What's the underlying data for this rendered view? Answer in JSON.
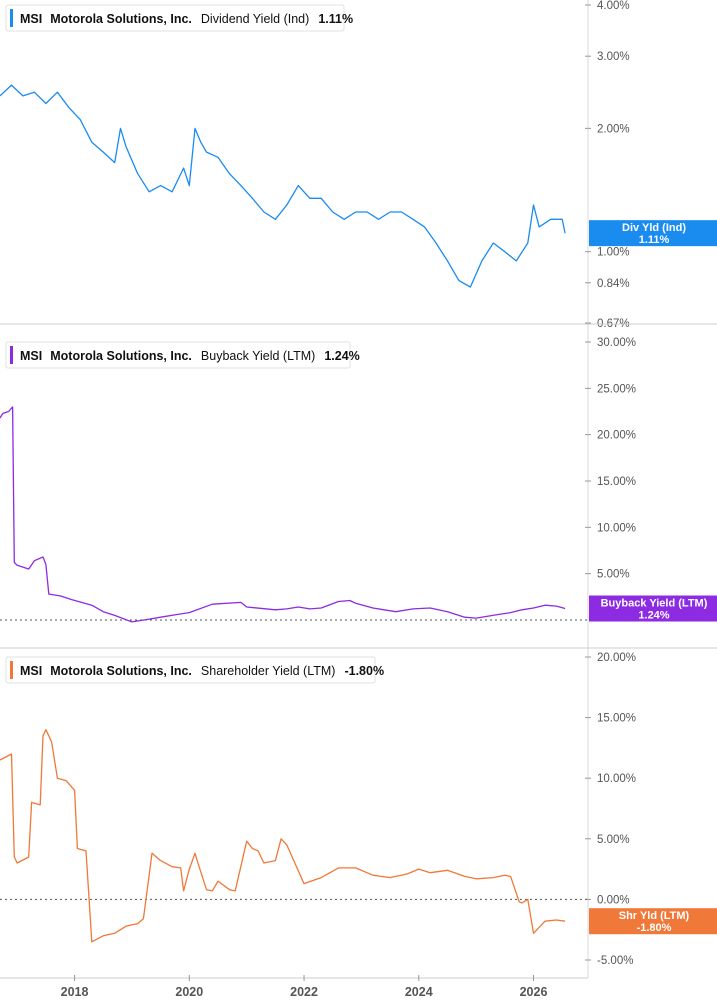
{
  "chart_data": [
    {
      "type": "line",
      "panel": "dividend",
      "ticker": "MSI",
      "company": "Motorola Solutions, Inc.",
      "metric": "Dividend Yield (Ind)",
      "current": "1.11%",
      "flag_label": "Div Yld (Ind)",
      "flag_value": "1.11%",
      "color": "#1a8cf0",
      "yscale": "log",
      "ylim": [
        0.67,
        4.0
      ],
      "yticks": [
        4.0,
        3.0,
        2.0,
        1.0,
        0.84,
        0.67
      ],
      "ytick_labels": [
        "4.00%",
        "3.00%",
        "2.00%",
        "1.00%",
        "0.84%",
        "0.67%"
      ],
      "zero_line": false,
      "x": [
        2016.7,
        2016.9,
        2017.1,
        2017.3,
        2017.5,
        2017.7,
        2017.9,
        2018.1,
        2018.3,
        2018.5,
        2018.7,
        2018.8,
        2018.9,
        2019.1,
        2019.3,
        2019.5,
        2019.7,
        2019.9,
        2020.0,
        2020.1,
        2020.2,
        2020.3,
        2020.5,
        2020.7,
        2020.9,
        2021.1,
        2021.3,
        2021.5,
        2021.7,
        2021.9,
        2022.1,
        2022.3,
        2022.5,
        2022.7,
        2022.9,
        2023.1,
        2023.3,
        2023.5,
        2023.7,
        2023.9,
        2024.1,
        2024.3,
        2024.5,
        2024.7,
        2024.9,
        2025.1,
        2025.3,
        2025.5,
        2025.7,
        2025.9,
        2026.0,
        2026.1,
        2026.3,
        2026.5,
        2026.55
      ],
      "y": [
        2.4,
        2.55,
        2.4,
        2.45,
        2.3,
        2.45,
        2.25,
        2.1,
        1.85,
        1.75,
        1.65,
        2.0,
        1.8,
        1.55,
        1.4,
        1.45,
        1.4,
        1.6,
        1.45,
        2.0,
        1.85,
        1.75,
        1.7,
        1.55,
        1.45,
        1.35,
        1.25,
        1.2,
        1.3,
        1.45,
        1.35,
        1.35,
        1.25,
        1.2,
        1.25,
        1.25,
        1.2,
        1.25,
        1.25,
        1.2,
        1.15,
        1.05,
        0.95,
        0.85,
        0.82,
        0.95,
        1.05,
        1.0,
        0.95,
        1.05,
        1.3,
        1.15,
        1.2,
        1.2,
        1.11
      ]
    },
    {
      "type": "line",
      "panel": "buyback",
      "ticker": "MSI",
      "company": "Motorola Solutions, Inc.",
      "metric": "Buyback Yield (LTM)",
      "current": "1.24%",
      "flag_label": "Buyback Yield (LTM)",
      "flag_value": "1.24%",
      "color": "#8c2be2",
      "yscale": "linear",
      "ylim": [
        0,
        30
      ],
      "yticks": [
        30,
        25,
        20,
        15,
        10,
        5
      ],
      "ytick_labels": [
        "30.00%",
        "25.00%",
        "20.00%",
        "15.00%",
        "10.00%",
        "5.00%"
      ],
      "zero_line": true,
      "x": [
        2016.7,
        2016.75,
        2016.85,
        2016.92,
        2016.95,
        2017.0,
        2017.2,
        2017.3,
        2017.45,
        2017.5,
        2017.55,
        2017.75,
        2017.95,
        2018.3,
        2018.5,
        2018.7,
        2019.0,
        2019.3,
        2019.5,
        2019.8,
        2020.0,
        2020.4,
        2020.9,
        2021.0,
        2021.5,
        2021.7,
        2021.9,
        2022.1,
        2022.3,
        2022.6,
        2022.8,
        2022.9,
        2023.2,
        2023.6,
        2023.9,
        2024.2,
        2024.5,
        2024.8,
        2025.0,
        2025.4,
        2025.6,
        2025.8,
        2026.0,
        2026.2,
        2026.4,
        2026.55
      ],
      "y": [
        21.8,
        22.3,
        22.5,
        23.0,
        6.2,
        5.9,
        5.5,
        6.4,
        6.8,
        6.0,
        2.8,
        2.6,
        2.2,
        1.6,
        0.9,
        0.5,
        -0.2,
        0.1,
        0.3,
        0.6,
        0.8,
        1.7,
        1.9,
        1.4,
        1.1,
        1.2,
        1.4,
        1.2,
        1.3,
        2.0,
        2.1,
        1.8,
        1.3,
        0.9,
        1.2,
        1.3,
        0.9,
        0.3,
        0.2,
        0.6,
        0.8,
        1.1,
        1.3,
        1.6,
        1.5,
        1.24
      ]
    },
    {
      "type": "line",
      "panel": "shareholder",
      "ticker": "MSI",
      "company": "Motorola Solutions, Inc.",
      "metric": "Shareholder Yield (LTM)",
      "current": "-1.80%",
      "flag_label": "Shr Yld (LTM)",
      "flag_value": "-1.80%",
      "color": "#f07838",
      "yscale": "linear",
      "ylim": [
        -5,
        20
      ],
      "yticks": [
        20,
        15,
        10,
        5,
        0,
        -5
      ],
      "ytick_labels": [
        "20.00%",
        "15.00%",
        "10.00%",
        "5.00%",
        "0.00%",
        "-5.00%"
      ],
      "zero_line": true,
      "x": [
        2016.7,
        2016.9,
        2016.95,
        2017.0,
        2017.2,
        2017.25,
        2017.4,
        2017.45,
        2017.5,
        2017.6,
        2017.7,
        2017.85,
        2018.0,
        2018.05,
        2018.2,
        2018.3,
        2018.5,
        2018.7,
        2018.9,
        2019.1,
        2019.2,
        2019.35,
        2019.5,
        2019.7,
        2019.85,
        2019.9,
        2020.0,
        2020.1,
        2020.15,
        2020.3,
        2020.4,
        2020.5,
        2020.7,
        2020.8,
        2021.0,
        2021.1,
        2021.2,
        2021.3,
        2021.5,
        2021.6,
        2021.7,
        2022.0,
        2022.3,
        2022.6,
        2022.9,
        2023.2,
        2023.5,
        2023.8,
        2024.0,
        2024.2,
        2024.5,
        2024.8,
        2025.0,
        2025.3,
        2025.5,
        2025.6,
        2025.75,
        2025.8,
        2025.9,
        2026.0,
        2026.2,
        2026.4,
        2026.55
      ],
      "y": [
        11.5,
        12.0,
        3.5,
        3.0,
        3.5,
        8.0,
        7.8,
        13.5,
        14.0,
        13.0,
        10.0,
        9.8,
        9.0,
        4.2,
        4.0,
        -3.5,
        -3.0,
        -2.8,
        -2.2,
        -2.0,
        -1.6,
        3.8,
        3.2,
        2.7,
        2.6,
        0.7,
        2.5,
        3.8,
        3.0,
        0.8,
        0.7,
        1.5,
        0.8,
        0.7,
        4.8,
        4.2,
        4.0,
        3.0,
        3.2,
        5.0,
        4.5,
        1.3,
        1.8,
        2.6,
        2.6,
        2.0,
        1.8,
        2.1,
        2.5,
        2.2,
        2.4,
        1.9,
        1.7,
        1.8,
        2.0,
        1.9,
        -0.2,
        -0.3,
        0.0,
        -2.8,
        -1.8,
        -1.7,
        -1.8
      ]
    }
  ],
  "x_axis": {
    "min": 2016.7,
    "max": 2026.95,
    "ticks": [
      2018,
      2020,
      2022,
      2024,
      2026
    ],
    "tick_labels": [
      "2018",
      "2020",
      "2022",
      "2024",
      "2026"
    ]
  },
  "colors": {
    "grid": "#d8d8d8",
    "zero_line": "#555555",
    "tick_text": "#555555"
  }
}
